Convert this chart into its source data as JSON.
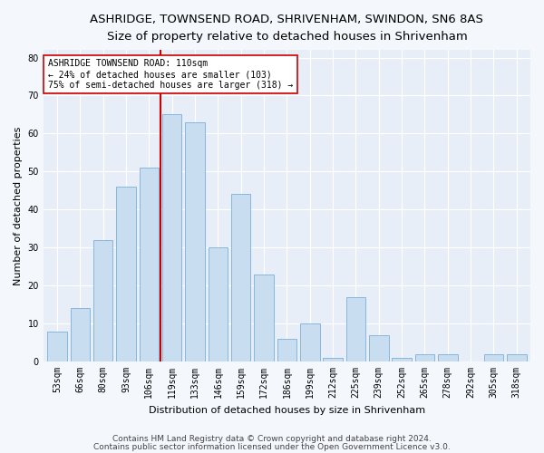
{
  "title1": "ASHRIDGE, TOWNSEND ROAD, SHRIVENHAM, SWINDON, SN6 8AS",
  "title2": "Size of property relative to detached houses in Shrivenham",
  "xlabel": "Distribution of detached houses by size in Shrivenham",
  "ylabel": "Number of detached properties",
  "categories": [
    "53sqm",
    "66sqm",
    "80sqm",
    "93sqm",
    "106sqm",
    "119sqm",
    "133sqm",
    "146sqm",
    "159sqm",
    "172sqm",
    "186sqm",
    "199sqm",
    "212sqm",
    "225sqm",
    "239sqm",
    "252sqm",
    "265sqm",
    "278sqm",
    "292sqm",
    "305sqm",
    "318sqm"
  ],
  "values": [
    8,
    14,
    32,
    46,
    51,
    65,
    63,
    30,
    44,
    23,
    6,
    10,
    1,
    17,
    7,
    1,
    2,
    2,
    0,
    2,
    2
  ],
  "bar_color": "#c9ddf0",
  "bar_edge_color": "#7ab0d8",
  "vline_x_index": 4.5,
  "vline_color": "#cc0000",
  "annotation_text": "ASHRIDGE TOWNSEND ROAD: 110sqm\n← 24% of detached houses are smaller (103)\n75% of semi-detached houses are larger (318) →",
  "annotation_box_color": "white",
  "annotation_box_edge": "#cc0000",
  "ylim": [
    0,
    82
  ],
  "yticks": [
    0,
    10,
    20,
    30,
    40,
    50,
    60,
    70,
    80
  ],
  "footer1": "Contains HM Land Registry data © Crown copyright and database right 2024.",
  "footer2": "Contains public sector information licensed under the Open Government Licence v3.0.",
  "fig_facecolor": "#f4f7fc",
  "axes_facecolor": "#e8eef7",
  "grid_color": "#ffffff",
  "title1_fontsize": 9.5,
  "title2_fontsize": 8.5,
  "axis_label_fontsize": 8,
  "tick_fontsize": 7,
  "annotation_fontsize": 7,
  "footer_fontsize": 6.5
}
